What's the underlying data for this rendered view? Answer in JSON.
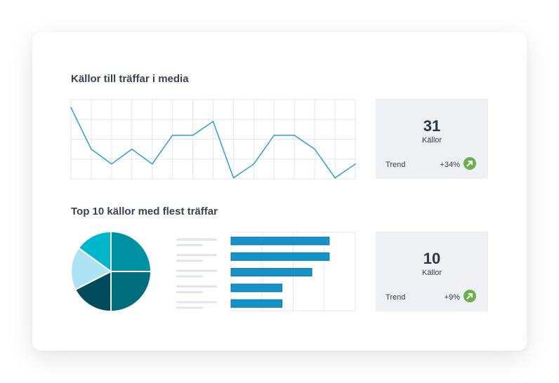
{
  "card": {
    "section1": {
      "title": "Källor till träffar i media"
    },
    "section2": {
      "title": "Top 10 källor med flest träffar"
    },
    "stat1": {
      "value": "31",
      "label": "Källor",
      "trend_label": "Trend",
      "trend_value": "+34%"
    },
    "stat2": {
      "value": "10",
      "label": "Källor",
      "trend_label": "Trend",
      "trend_value": "+9%"
    }
  },
  "colors": {
    "line": "#2a9fd0",
    "bar": "#1593c8",
    "bar_border": "#0d6f9e",
    "grid": "#e3e6ea",
    "stat_bg": "#eef0f3",
    "trend_up": "#6ab04c",
    "placeholder": "#e2e5e9",
    "pie": [
      "#0090a4",
      "#006e7c",
      "#004c5c",
      "#aee3f5",
      "#00b6cc"
    ]
  },
  "icons": {
    "trend": "arrow-up-right-icon"
  },
  "chart_data": [
    {
      "type": "line",
      "title": "",
      "xlabel": "",
      "ylabel": "",
      "grid": true,
      "ylim": [
        0,
        4
      ],
      "x": [
        0,
        1,
        2,
        3,
        4,
        5,
        6,
        7,
        8,
        9,
        10,
        11,
        12,
        13,
        14
      ],
      "series": [
        {
          "values": [
            3.6,
            1.5,
            0.75,
            1.5,
            0.75,
            2.2,
            2.2,
            2.9,
            0.05,
            0.75,
            2.2,
            2.2,
            1.5,
            0.05,
            0.75
          ]
        }
      ]
    },
    {
      "type": "pie",
      "title": "",
      "values": [
        25,
        25,
        17.5,
        17.5,
        15
      ]
    },
    {
      "type": "bar",
      "orientation": "horizontal",
      "title": "",
      "grid": true,
      "xlim": [
        0,
        100
      ],
      "values": [
        79,
        79,
        65,
        41,
        41
      ]
    }
  ]
}
